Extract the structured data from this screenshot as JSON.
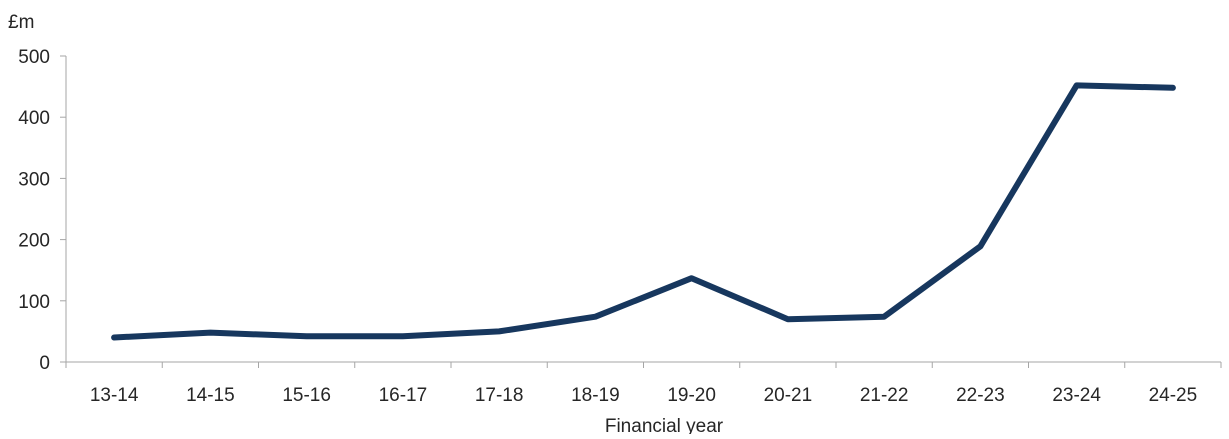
{
  "chart_data": {
    "type": "line",
    "title": "",
    "xlabel": "Financial year",
    "ylabel": "£m",
    "categories": [
      "13-14",
      "14-15",
      "15-16",
      "16-17",
      "17-18",
      "18-19",
      "19-20",
      "20-21",
      "21-22",
      "22-23",
      "23-24",
      "24-25"
    ],
    "series": [
      {
        "values": [
          40,
          48,
          42,
          42,
          50,
          74,
          137,
          70,
          74,
          189,
          452,
          448
        ],
        "color": "#17375e"
      }
    ],
    "ylim": [
      0,
      500
    ],
    "yticks": [
      0,
      100,
      200,
      300,
      400,
      500
    ],
    "grid": false,
    "legend": "none"
  }
}
